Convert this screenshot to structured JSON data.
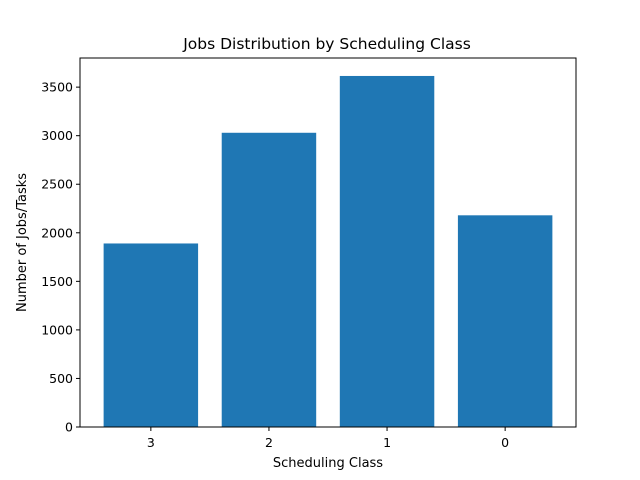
{
  "chart_data": {
    "type": "bar",
    "title": "Jobs Distribution by Scheduling Class",
    "xlabel": "Scheduling Class",
    "ylabel": "Number of Jobs/Tasks",
    "categories": [
      "3",
      "2",
      "1",
      "0"
    ],
    "values": [
      1890,
      3030,
      3615,
      2180
    ],
    "ylim": [
      0,
      3800
    ],
    "yticks": [
      0,
      500,
      1000,
      1500,
      2000,
      2500,
      3000,
      3500
    ],
    "ytick_labels": [
      "0",
      "500",
      "1000",
      "1500",
      "2000",
      "2500",
      "3000",
      "3500"
    ],
    "bar_color": "#1f77b4",
    "grid": false,
    "legend": "none"
  }
}
